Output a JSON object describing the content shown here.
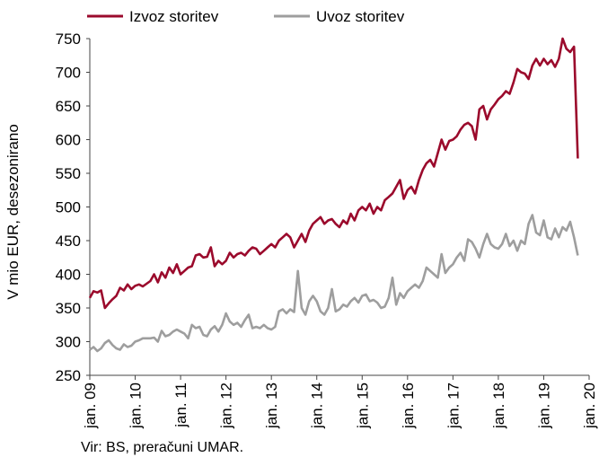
{
  "chart_data": {
    "type": "line",
    "ylabel": "V mio EUR, desezonirano",
    "xlabel": "",
    "ylim": [
      250,
      750
    ],
    "y_ticks": [
      250,
      300,
      350,
      400,
      450,
      500,
      550,
      600,
      650,
      700,
      750
    ],
    "x_tick_labels": [
      "jan. 09",
      "jan. 10",
      "jan. 11",
      "jan. 12",
      "jan. 13",
      "jan. 14",
      "jan. 15",
      "jan. 16",
      "jan. 17",
      "jan. 18",
      "jan. 19",
      "jan. 20"
    ],
    "x_start": "2009-01",
    "x_end": "2020-01",
    "legend_position": "top",
    "grid": false,
    "series": [
      {
        "name": "Izvoz storitev",
        "color": "#9b0a2c",
        "values": [
          365,
          375,
          373,
          376,
          350,
          357,
          363,
          368,
          380,
          376,
          385,
          378,
          383,
          385,
          382,
          386,
          390,
          400,
          388,
          403,
          395,
          410,
          402,
          415,
          400,
          405,
          410,
          412,
          428,
          430,
          425,
          426,
          440,
          412,
          420,
          415,
          420,
          432,
          425,
          430,
          432,
          428,
          435,
          440,
          438,
          430,
          435,
          440,
          445,
          440,
          450,
          455,
          460,
          455,
          440,
          450,
          460,
          448,
          465,
          475,
          480,
          485,
          475,
          480,
          482,
          475,
          470,
          480,
          475,
          490,
          480,
          495,
          500,
          495,
          505,
          490,
          500,
          495,
          510,
          515,
          520,
          530,
          540,
          512,
          525,
          530,
          520,
          540,
          555,
          565,
          570,
          560,
          580,
          600,
          585,
          598,
          600,
          605,
          615,
          622,
          625,
          620,
          600,
          645,
          650,
          630,
          645,
          652,
          660,
          665,
          672,
          668,
          685,
          705,
          700,
          698,
          690,
          710,
          720,
          710,
          720,
          712,
          718,
          708,
          720,
          750,
          735,
          730,
          738,
          572
        ]
      },
      {
        "name": "Uvoz storitev",
        "color": "#9e9e9e",
        "values": [
          288,
          292,
          286,
          290,
          298,
          302,
          295,
          290,
          288,
          296,
          292,
          294,
          300,
          302,
          305,
          305,
          305,
          306,
          300,
          316,
          308,
          310,
          315,
          318,
          315,
          312,
          305,
          325,
          320,
          322,
          310,
          308,
          318,
          323,
          315,
          325,
          342,
          330,
          325,
          328,
          322,
          332,
          340,
          320,
          322,
          320,
          325,
          320,
          318,
          322,
          345,
          348,
          342,
          348,
          344,
          405,
          350,
          340,
          360,
          368,
          360,
          345,
          340,
          350,
          378,
          345,
          348,
          355,
          352,
          360,
          365,
          358,
          368,
          370,
          360,
          362,
          358,
          350,
          352,
          365,
          395,
          355,
          372,
          365,
          375,
          380,
          385,
          380,
          390,
          410,
          405,
          400,
          395,
          430,
          402,
          410,
          415,
          425,
          432,
          420,
          452,
          448,
          438,
          425,
          445,
          460,
          445,
          440,
          438,
          445,
          460,
          442,
          450,
          435,
          450,
          445,
          475,
          488,
          462,
          458,
          480,
          455,
          452,
          468,
          455,
          470,
          465,
          478,
          455,
          428
        ]
      }
    ]
  },
  "source": "Vir: BS, preračuni UMAR."
}
